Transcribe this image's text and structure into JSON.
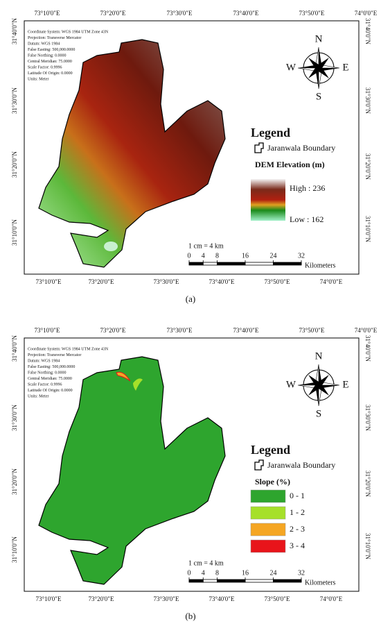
{
  "panels": [
    {
      "caption": "(a)",
      "top_labels": [
        "73°10'0\"E",
        "73°20'0\"E",
        "73°30'0\"E",
        "73°40'0\"E",
        "73°50'0\"E",
        "74°0'0\"E"
      ],
      "bottom_labels": [
        "73°10'0\"E",
        "73°20'0\"E",
        "73°30'0\"E",
        "73°40'0\"E",
        "73°50'0\"E",
        "74°0'0\"E"
      ],
      "left_labels": [
        "31°40'0\"N",
        "31°30'0\"N",
        "31°20'0\"N",
        "31°10'0\"N"
      ],
      "right_labels": [
        "31°40'0\"N",
        "31°30'0\"N",
        "31°20'0\"N",
        "31°10'0\"N"
      ],
      "info": [
        "Coordinate System: WGS 1984 UTM Zone 43N",
        "Projection: Transverse Mercator",
        "Datum: WGS 1984",
        "False Easting: 500,000.0000",
        "False Northing: 0.0000",
        "Central Meridian: 75.0000",
        "Scale Factor: 0.9996",
        "Latitude Of Origin: 0.0000",
        "Units: Meter"
      ],
      "compass": {
        "n": "N",
        "e": "E",
        "s": "S",
        "w": "W"
      },
      "legend": {
        "title": "Legend",
        "boundary": "Jaranwala Boundary",
        "heading": "DEM Elevation (m)",
        "high": "High : 236",
        "low": "Low : 162"
      },
      "scale": {
        "ratio": "1 cm = 4 km",
        "ticks": [
          0,
          4,
          8,
          16,
          24,
          32
        ],
        "unit": "Kilometers"
      }
    },
    {
      "caption": "(b)",
      "top_labels": [
        "73°10'0\"E",
        "73°20'0\"E",
        "73°30'0\"E",
        "73°40'0\"E",
        "73°50'0\"E",
        "74°0'0\"E"
      ],
      "bottom_labels": [
        "73°10'0\"E",
        "73°20'0\"E",
        "73°30'0\"E",
        "73°40'0\"E",
        "73°50'0\"E",
        "74°0'0\"E"
      ],
      "left_labels": [
        "31°40'0\"N",
        "31°30'0\"N",
        "31°20'0\"N",
        "31°10'0\"N"
      ],
      "right_labels": [
        "31°40'0\"N",
        "31°30'0\"N",
        "31°20'0\"N",
        "31°10'0\"N"
      ],
      "info": [
        "Coordinate System: WGS 1984 UTM Zone 43N",
        "Projection: Transverse Mercator",
        "Datum: WGS 1984",
        "False Easting: 500,000.0000",
        "False Northing: 0.0000",
        "Central Meridian: 75.0000",
        "Scale Factor: 0.9996",
        "Latitude Of Origin: 0.0000",
        "Units: Meter"
      ],
      "compass": {
        "n": "N",
        "e": "E",
        "s": "S",
        "w": "W"
      },
      "legend": {
        "title": "Legend",
        "boundary": "Jaranwala Boundary",
        "heading": "Slope (%)",
        "classes": [
          {
            "label": "0 - 1",
            "color": "#2ea52e"
          },
          {
            "label": "1 - 2",
            "color": "#a6e02a"
          },
          {
            "label": "2 - 3",
            "color": "#f5a623"
          },
          {
            "label": "3 - 4",
            "color": "#e8141a"
          }
        ]
      },
      "scale": {
        "ratio": "1 cm = 4 km",
        "ticks": [
          0,
          4,
          8,
          16,
          24,
          32
        ],
        "unit": "Kilometers"
      }
    }
  ]
}
